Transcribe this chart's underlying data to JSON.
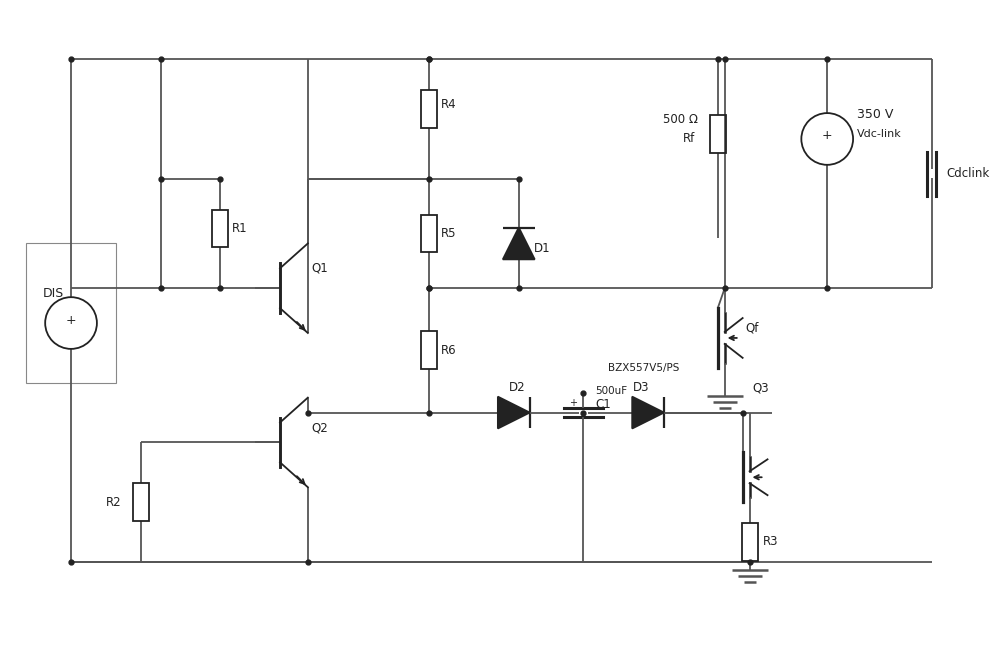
{
  "wire_color": "#555555",
  "component_color": "#222222",
  "lw": 1.3,
  "figsize": [
    10.0,
    6.58
  ],
  "dpi": 100,
  "xlim": [
    0,
    100
  ],
  "ylim": [
    0,
    65.8
  ]
}
